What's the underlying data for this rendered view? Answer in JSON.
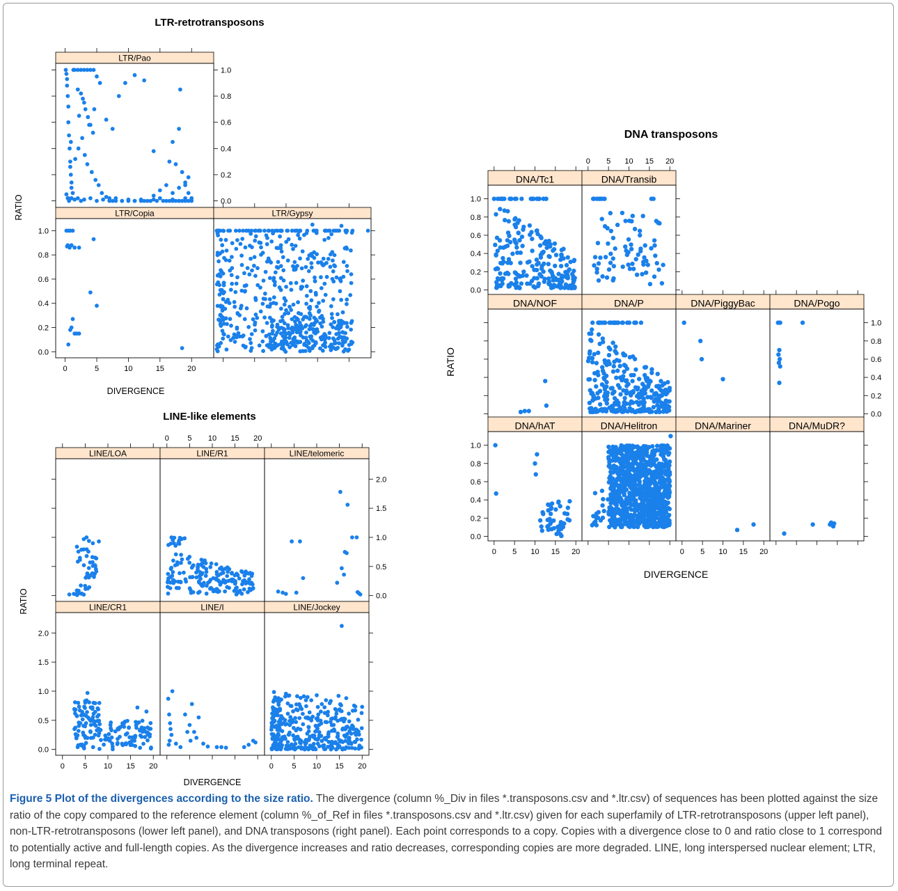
{
  "caption": {
    "figure_label": "Figure 5 Plot of the divergences according to the size ratio.",
    "text": "The divergence (column %_Div in files *.transposons.csv and *.ltr.csv) of sequences has been plotted against the size ratio of the copy compared to the reference element (column %_of_Ref in files *.transposons.csv and *.ltr.csv) given for each superfamily of LTR-retrotransposons (upper left panel), non-LTR-retrotransposons (lower left panel), and DNA transposons (right panel). Each point corresponds to a copy. Copies with a divergence close to 0 and ratio close to 1 correspond to potentially active and full-length copies. As the divergence increases and ratio decreases, corresponding copies are more degraded. LINE, long interspersed nuclear element; LTR, long terminal repeat."
  },
  "chart_data": [
    {
      "type": "scatter",
      "title": "LTR-retrotransposons",
      "xlabel": "DIVERGENCE",
      "ylabel": "RATIO",
      "xlim": [
        -1.5,
        23.5
      ],
      "ylim_top": [
        -0.05,
        1.05
      ],
      "ylim_bottom": [
        -0.05,
        1.1
      ],
      "x_ticks": [
        0,
        5,
        10,
        15,
        20
      ],
      "y_ticks_top": [
        0.0,
        0.2,
        0.4,
        0.6,
        0.8,
        1.0
      ],
      "y_ticks_bottom": [
        0.0,
        0.2,
        0.4,
        0.6,
        0.8,
        1.0
      ],
      "series": [
        {
          "name": "LTR/Pao",
          "x": [
            0.1,
            0.2,
            0.3,
            0.3,
            0.4,
            0.5,
            0.5,
            0.6,
            0.7,
            0.8,
            0.9,
            1.0,
            0.2,
            0.4,
            0.6,
            0.8,
            1.0,
            1.2,
            1.3,
            1.5,
            2.0,
            2.5,
            3.0,
            3.5,
            4.0,
            4.5,
            5.0,
            5.5,
            2.5,
            2.8,
            3.2,
            3.6,
            4.0,
            4.4,
            2.7,
            3.1,
            3.5,
            4.2,
            4.8,
            5.3,
            5.8,
            6.5,
            7.0,
            7.5,
            8.0,
            9.0,
            10.0,
            11.0,
            12.0,
            12.5,
            13.5,
            14.5,
            15.5,
            16.5,
            17.0,
            17.5,
            18.0,
            18.5,
            19.0,
            19.5,
            0.5,
            1.0,
            1.5,
            2.0,
            2.5,
            3.0,
            4.0,
            5.0,
            6.0,
            7.0,
            8.0,
            9.0,
            10.0,
            11.0,
            12.0,
            13.0,
            14.0,
            15.0,
            16.0,
            17.0,
            18.0,
            19.0,
            20.0,
            14.0,
            15.0,
            16.0,
            17.0,
            18.0,
            19.0,
            19.5,
            20.0,
            17.5,
            18.5,
            19.0,
            19.5,
            20.0,
            18.0,
            17.0,
            16.5,
            2.0,
            3.0,
            2.2,
            6.5,
            11.0,
            9.5,
            12.5,
            18.2,
            14.0,
            7.5,
            8.5,
            3.8,
            4.6,
            2.1,
            1.6,
            0.9
          ],
          "y": [
            1.0,
            0.97,
            0.93,
            0.88,
            0.8,
            0.72,
            0.6,
            0.5,
            0.4,
            0.3,
            0.2,
            0.1,
            0.05,
            0.02,
            0.0,
            0.26,
            0.14,
            0.06,
            1.0,
            1.0,
            1.0,
            1.0,
            1.0,
            1.0,
            1.0,
            1.0,
            0.95,
            0.9,
            0.82,
            0.78,
            0.7,
            0.64,
            0.58,
            0.52,
            0.48,
            0.35,
            0.28,
            0.22,
            0.16,
            0.12,
            0.06,
            0.03,
            0.02,
            0.0,
            0.0,
            0.0,
            0.0,
            0.0,
            0.0,
            0.0,
            0.0,
            0.0,
            0.0,
            0.0,
            0.0,
            0.0,
            0.0,
            0.0,
            0.0,
            0.0,
            0.02,
            0.02,
            0.01,
            0.02,
            0.0,
            0.01,
            0.02,
            0.0,
            0.01,
            0.0,
            0.02,
            0.0,
            0.01,
            0.0,
            0.01,
            0.0,
            0.01,
            0.02,
            0.0,
            0.01,
            0.0,
            0.02,
            0.0,
            0.04,
            0.08,
            0.12,
            0.06,
            0.1,
            0.14,
            0.18,
            0.02,
            0.28,
            0.22,
            0.12,
            0.06,
            0.02,
            0.55,
            0.45,
            0.3,
            0.85,
            0.75,
            0.65,
            0.62,
            0.96,
            0.9,
            0.92,
            0.85,
            0.38,
            0.55,
            0.8,
            0.58,
            0.7,
            0.4,
            0.32,
            0.45
          ],
          "panel": "top-left"
        },
        {
          "name": "LTR/Copia",
          "x": [
            0.2,
            0.5,
            0.8,
            1.2,
            0.4,
            0.7,
            1.0,
            1.5,
            2.2,
            4.5,
            4.0,
            5.0,
            0.5,
            0.8,
            1.0,
            1.2,
            1.5,
            1.8,
            2.2,
            18.5,
            0.3
          ],
          "y": [
            1.0,
            1.0,
            1.0,
            1.0,
            0.88,
            0.86,
            0.88,
            0.86,
            0.86,
            0.93,
            0.49,
            0.38,
            0.06,
            0.18,
            0.2,
            0.27,
            0.15,
            0.15,
            0.15,
            0.03,
            0.87
          ],
          "panel": "bottom-left"
        },
        {
          "name": "LTR/Gypsy",
          "panel": "bottom-right",
          "generated_cloud": true
        }
      ]
    },
    {
      "type": "scatter",
      "title": "LINE-like elements",
      "xlabel": "DIVERGENCE",
      "ylabel": "RATIO",
      "xlim": [
        -1.5,
        21.5
      ],
      "ylim": [
        -0.1,
        2.35
      ],
      "x_ticks": [
        0,
        5,
        10,
        15,
        20
      ],
      "y_ticks": [
        0.0,
        0.5,
        1.0,
        1.5,
        2.0
      ],
      "series": [
        {
          "name": "LINE/LOA",
          "panel": "r1c1"
        },
        {
          "name": "LINE/R1",
          "panel": "r1c2"
        },
        {
          "name": "LINE/telomeric",
          "panel": "r1c3"
        },
        {
          "name": "LINE/CR1",
          "panel": "r2c1"
        },
        {
          "name": "LINE/I",
          "panel": "r2c2"
        },
        {
          "name": "LINE/Jockey",
          "panel": "r2c3"
        }
      ]
    },
    {
      "type": "scatter",
      "title": "DNA transposons",
      "xlabel": "DIVERGENCE",
      "ylabel": "RATIO",
      "xlim": [
        -1.5,
        21.5
      ],
      "ylim": [
        -0.05,
        1.15
      ],
      "x_ticks": [
        0,
        5,
        10,
        15,
        20
      ],
      "y_ticks": [
        0.0,
        0.2,
        0.4,
        0.6,
        0.8,
        1.0
      ],
      "series": [
        {
          "name": "DNA/Tc1",
          "panel": "r1c1"
        },
        {
          "name": "DNA/Transib",
          "panel": "r1c2"
        },
        {
          "name": "DNA/NOF",
          "panel": "r2c1"
        },
        {
          "name": "DNA/P",
          "panel": "r2c2"
        },
        {
          "name": "DNA/PiggyBac",
          "panel": "r2c3"
        },
        {
          "name": "DNA/Pogo",
          "panel": "r2c4"
        },
        {
          "name": "DNA/hAT",
          "panel": "r3c1"
        },
        {
          "name": "DNA/Helitron",
          "panel": "r3c2"
        },
        {
          "name": "DNA/Mariner",
          "panel": "r3c3"
        },
        {
          "name": "DNA/MuDR?",
          "panel": "r3c4"
        }
      ]
    }
  ],
  "colors": {
    "point": "#1a80ea",
    "strip": "#ffe5cc",
    "caption_title": "#1a5fae"
  }
}
